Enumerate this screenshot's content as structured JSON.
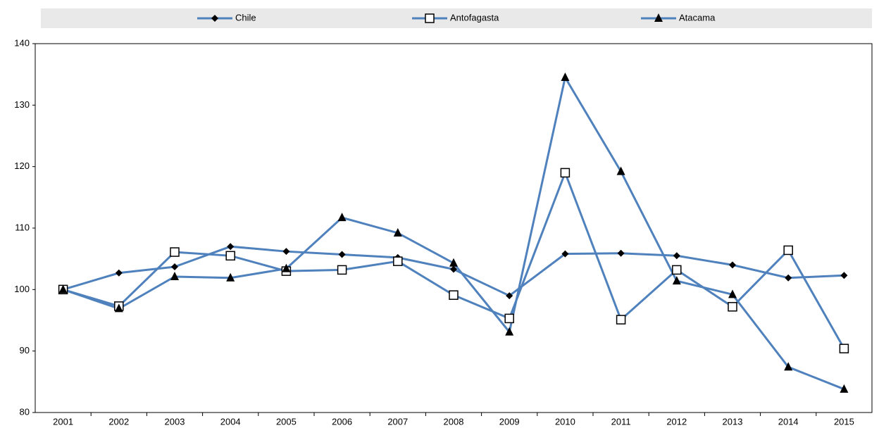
{
  "chart_data": {
    "type": "line",
    "categories": [
      "2001",
      "2002",
      "2003",
      "2004",
      "2005",
      "2006",
      "2007",
      "2008",
      "2009",
      "2010",
      "2011",
      "2012",
      "2013",
      "2014",
      "2015"
    ],
    "series": [
      {
        "name": "Chile",
        "color": "#4f81bd",
        "marker": "diamond",
        "values": [
          100,
          102.7,
          103.7,
          107,
          106.2,
          105.7,
          105.2,
          103.3,
          99,
          105.8,
          105.9,
          105.5,
          104,
          101.9,
          102.3
        ]
      },
      {
        "name": "Antofagasta",
        "color": "#4f81bd",
        "marker": "square",
        "values": [
          100,
          97.3,
          106.1,
          105.5,
          103,
          103.2,
          104.6,
          99.1,
          95.3,
          119,
          95.1,
          103.2,
          97.2,
          106.4,
          90.4
        ]
      },
      {
        "name": "Atacama",
        "color": "#4f81bd",
        "marker": "triangle",
        "values": [
          100,
          96.9,
          102.1,
          101.9,
          103.4,
          111.7,
          109.2,
          104.3,
          93.1,
          134.5,
          119.2,
          101.4,
          99.2,
          87.4,
          83.8
        ]
      }
    ],
    "ylim": [
      80,
      140
    ],
    "yticks": [
      80,
      90,
      100,
      110,
      120,
      130,
      140
    ],
    "grid": false,
    "legend": "top"
  }
}
